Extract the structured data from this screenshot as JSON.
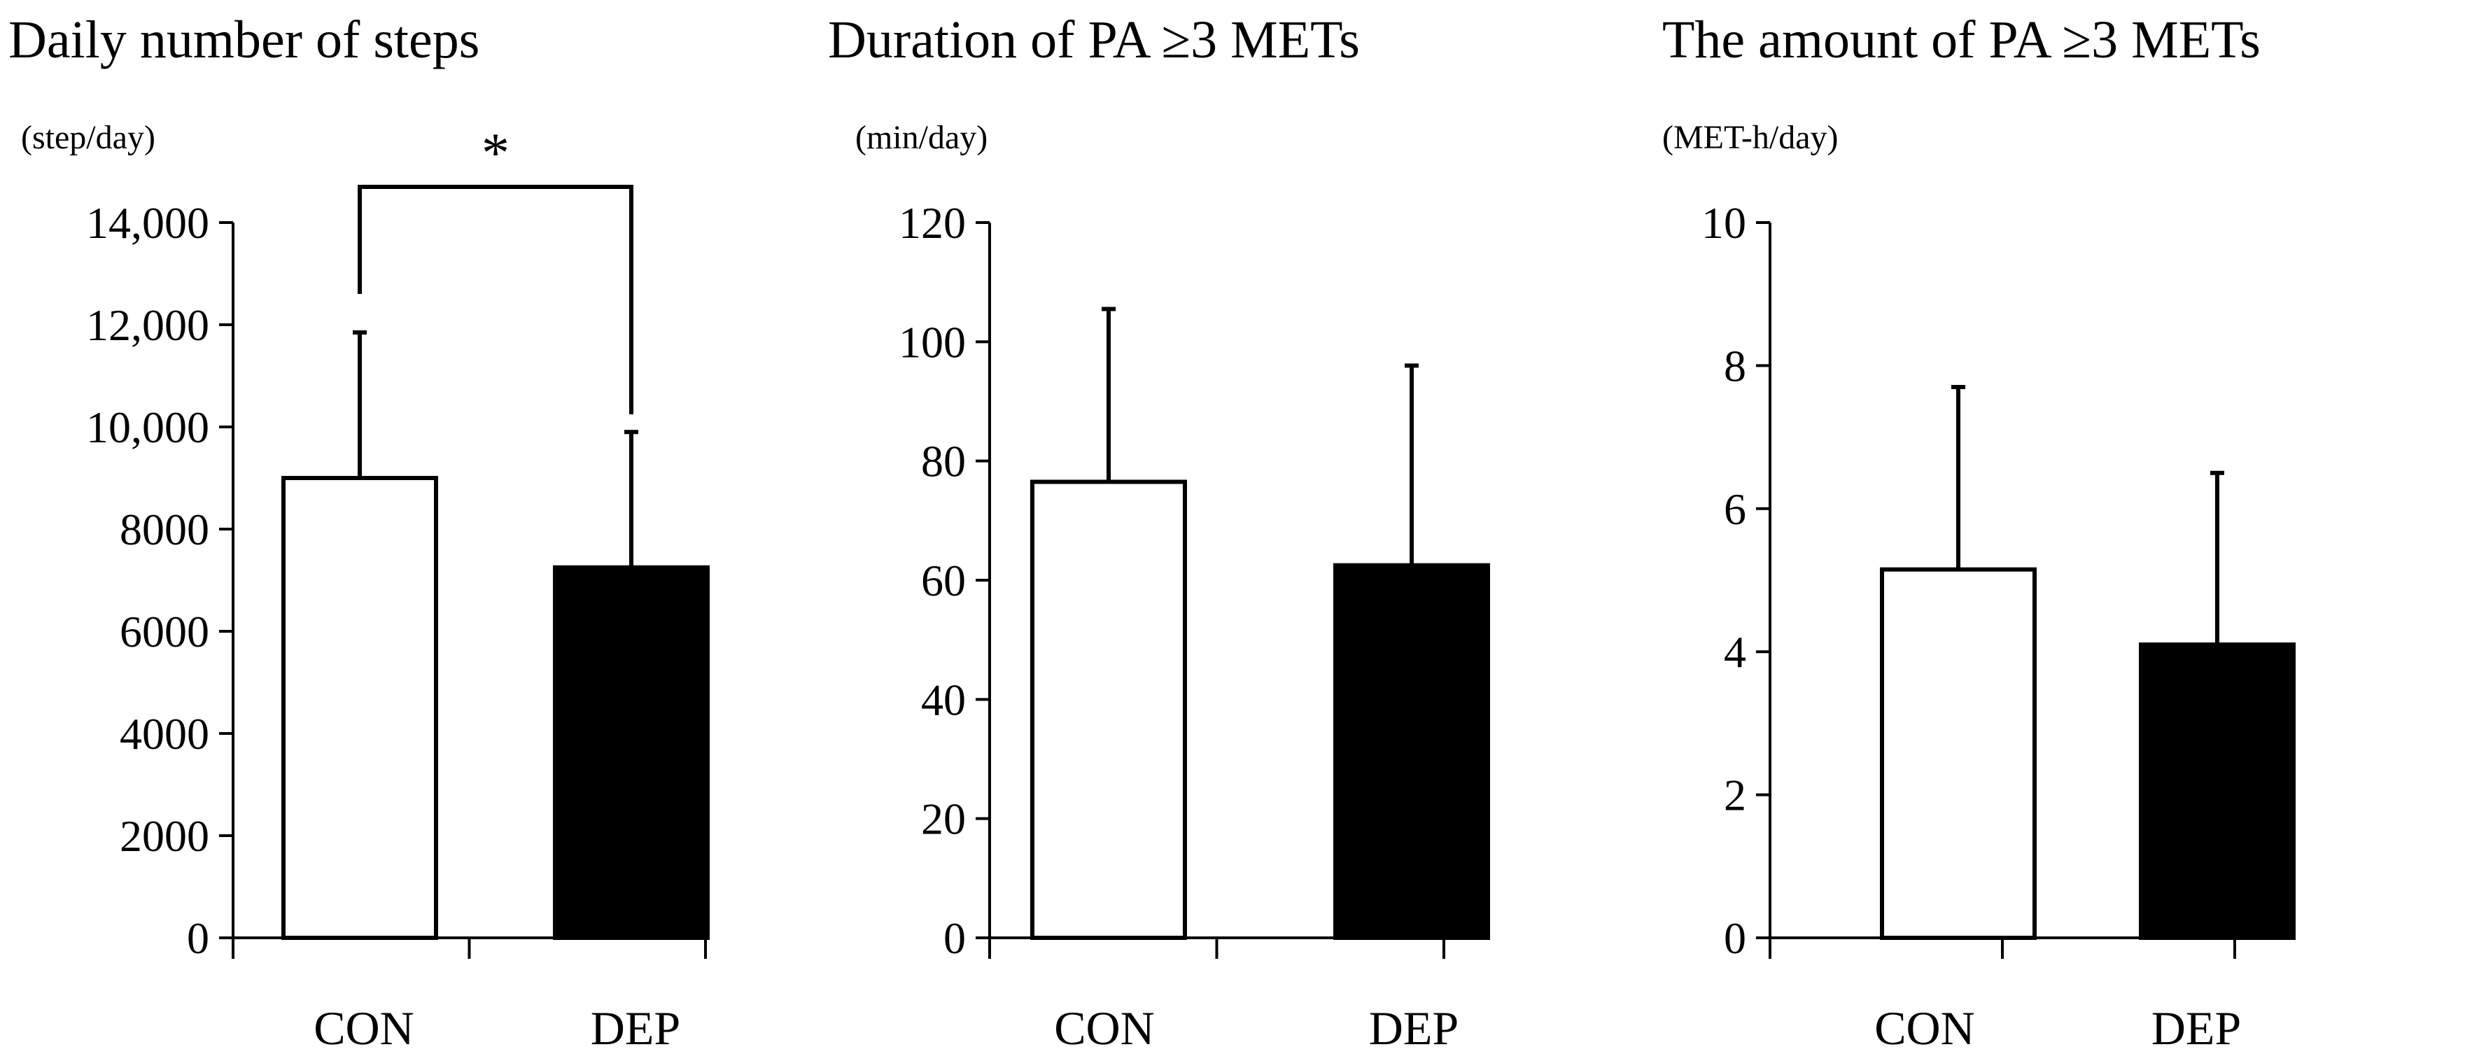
{
  "chart_data": [
    {
      "type": "bar",
      "title": "Daily number of steps",
      "ylabel": "(step/day)",
      "categories": [
        "CON",
        "DEP"
      ],
      "values": [
        9000,
        7250
      ],
      "error_upper": [
        11850,
        9900
      ],
      "ylim": [
        0,
        14000
      ],
      "yticks": [
        0,
        2000,
        4000,
        6000,
        8000,
        10000,
        12000,
        14000
      ],
      "ytick_labels": [
        "0",
        "2000",
        "4000",
        "6000",
        "8000",
        "10,000",
        "12,000",
        "14,000"
      ],
      "significance": {
        "label": "*",
        "between": [
          "CON",
          "DEP"
        ]
      }
    },
    {
      "type": "bar",
      "title": "Duration of PA ≥3 METs",
      "ylabel": "(min/day)",
      "categories": [
        "CON",
        "DEP"
      ],
      "values": [
        76.5,
        62.5
      ],
      "error_upper": [
        105.5,
        96
      ],
      "ylim": [
        0,
        120
      ],
      "yticks": [
        0,
        20,
        40,
        60,
        80,
        100,
        120
      ],
      "ytick_labels": [
        "0",
        "20",
        "40",
        "60",
        "80",
        "100",
        "120"
      ]
    },
    {
      "type": "bar",
      "title": "The amount of PA ≥3 METs",
      "ylabel": "(MET-h/day)",
      "categories": [
        "CON",
        "DEP"
      ],
      "values": [
        5.15,
        4.1
      ],
      "error_upper": [
        7.7,
        6.5
      ],
      "ylim": [
        0,
        10
      ],
      "yticks": [
        0,
        2,
        4,
        6,
        8,
        10
      ],
      "ytick_labels": [
        "0",
        "2",
        "4",
        "6",
        "8",
        "10"
      ]
    }
  ],
  "colors": {
    "CON": "#ffffff",
    "DEP": "#000000",
    "axis": "#000000"
  }
}
